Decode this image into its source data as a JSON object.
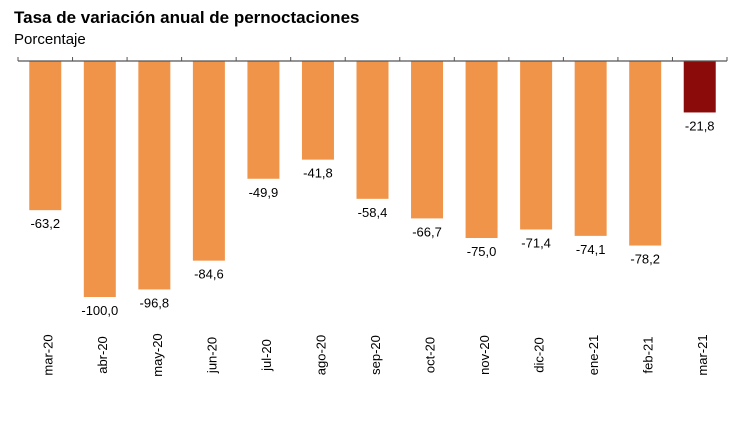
{
  "chart_data": {
    "type": "bar",
    "title": "Tasa de variación anual de pernoctaciones",
    "subtitle": "Porcentaje",
    "xlabel": "",
    "ylabel": "",
    "ylim": [
      -100,
      0
    ],
    "grid": false,
    "categories": [
      "mar-20",
      "abr-20",
      "may-20",
      "jun-20",
      "jul-20",
      "ago-20",
      "sep-20",
      "oct-20",
      "nov-20",
      "dic-20",
      "ene-21",
      "feb-21",
      "mar-21"
    ],
    "values": [
      -63.2,
      -100.0,
      -96.8,
      -84.6,
      -49.9,
      -41.8,
      -58.4,
      -66.7,
      -75.0,
      -71.4,
      -74.1,
      -78.2,
      -21.8
    ],
    "data_labels": [
      "-63,2",
      "-100,0",
      "-96,8",
      "-84,6",
      "-49,9",
      "-41,8",
      "-58,4",
      "-66,7",
      "-75,0",
      "-71,4",
      "-74,1",
      "-78,2",
      "-21,8"
    ],
    "colors": {
      "default": "#F0944A",
      "highlight": "#8B0A0A",
      "axis": "#555555"
    },
    "highlight_index": 12
  }
}
